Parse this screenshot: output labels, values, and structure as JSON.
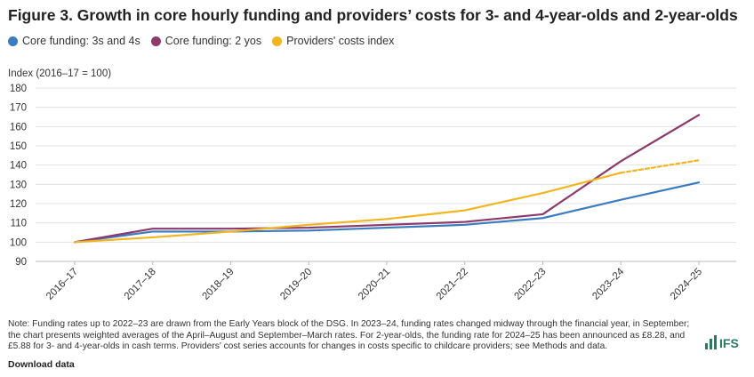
{
  "title": "Figure 3. Growth in core hourly funding and providers’ costs for 3- and 4-year-olds and 2-year-olds",
  "legend": [
    {
      "label": "Core funding: 3s and 4s",
      "color": "#3b7bbf"
    },
    {
      "label": "Core funding: 2 yos",
      "color": "#8b3a6b"
    },
    {
      "label": "Providers' costs index",
      "color": "#f2b51f"
    }
  ],
  "chart_data": {
    "type": "line",
    "title": "Figure 3. Growth in core hourly funding and providers’ costs for 3- and 4-year-olds and 2-year-olds",
    "ylabel": "Index (2016–17 = 100)",
    "xlabel": "",
    "ylim": [
      90,
      180
    ],
    "yticks": [
      90,
      100,
      110,
      120,
      130,
      140,
      150,
      160,
      170,
      180
    ],
    "grid": true,
    "legend_position": "top-left",
    "categories": [
      "2016–17",
      "2017–18",
      "2018–19",
      "2019–20",
      "2020–21",
      "2021–22",
      "2022–23",
      "2023–24",
      "2024–25"
    ],
    "series": [
      {
        "name": "Core funding: 3s and 4s",
        "color": "#3b7bbf",
        "values": [
          100,
          105.5,
          105.5,
          106,
          107.5,
          109,
          112.5,
          122,
          131
        ],
        "dashed_from_index": null
      },
      {
        "name": "Core funding: 2 yos",
        "color": "#8b3a6b",
        "values": [
          100,
          107,
          107,
          107.5,
          109,
          110.5,
          114.5,
          142,
          166
        ],
        "dashed_from_index": null
      },
      {
        "name": "Providers' costs index",
        "color": "#f2b51f",
        "values": [
          100,
          102.5,
          105.5,
          109,
          112,
          116.5,
          125.5,
          136,
          142.5
        ],
        "dashed_from_index": 7
      }
    ]
  },
  "note": "Note: Funding rates up to 2022–23 are drawn from the Early Years block of the DSG. In 2023–24, funding rates changed midway through the financial year, in September; the chart presents weighted averages of the April–August and September–March rates. For 2-year-olds, the funding rate for 2024–25 has been announced as £8.28, and £5.88 for 3- and 4-year-olds in cash terms. Providers' cost series accounts for changes in costs specific to childcare providers; see Methods and data.",
  "download_label": "Download data",
  "logo_text": "IFS"
}
